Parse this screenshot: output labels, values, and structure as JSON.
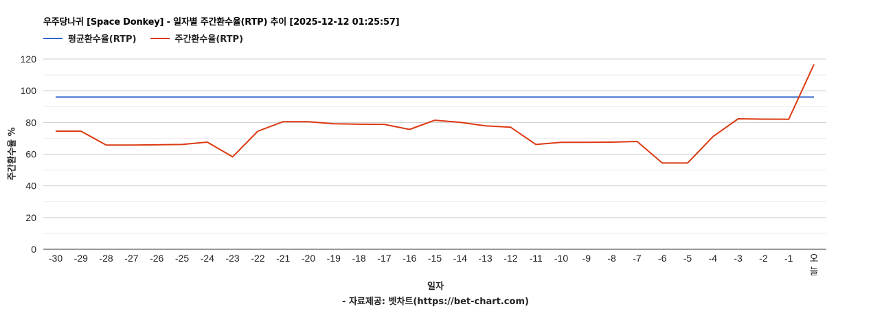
{
  "title": "우주당나귀 [Space Donkey] - 일자별 주간환수율(RTP) 추이 [2025-12-12 01:25:57]",
  "legend": [
    {
      "label": "평균환수율(RTP)",
      "color": "#3366cc"
    },
    {
      "label": "주간환수율(RTP)",
      "color": "#dc3912"
    }
  ],
  "yaxis_title": "주간환수율 %",
  "xaxis_title": "일자",
  "credit": "- 자료제공: 벳차트(https://bet-chart.com)",
  "chart_data": {
    "type": "line",
    "title": "우주당나귀 [Space Donkey] - 일자별 주간환수율(RTP) 추이 [2025-12-12 01:25:57]",
    "xlabel": "일자",
    "ylabel": "주간환수율 %",
    "ylim": [
      0,
      120
    ],
    "yticks": [
      0,
      20,
      40,
      60,
      80,
      100,
      120
    ],
    "grid": true,
    "legend_position": "top",
    "categories": [
      "-30",
      "-29",
      "-28",
      "-27",
      "-26",
      "-25",
      "-24",
      "-23",
      "-22",
      "-21",
      "-20",
      "-19",
      "-18",
      "-17",
      "-16",
      "-15",
      "-14",
      "-13",
      "-12",
      "-11",
      "-10",
      "-9",
      "-8",
      "-7",
      "-6",
      "-5",
      "-4",
      "-3",
      "-2",
      "-1",
      "오늘"
    ],
    "series": [
      {
        "name": "평균환수율(RTP)",
        "color": "#3366cc",
        "values": [
          96,
          96,
          96,
          96,
          96,
          96,
          96,
          96,
          96,
          96,
          96,
          96,
          96,
          96,
          96,
          96,
          96,
          96,
          96,
          96,
          96,
          96,
          96,
          96,
          96,
          96,
          96,
          96,
          96,
          96,
          96
        ]
      },
      {
        "name": "주간환수율(RTP)",
        "color": "#dc3912",
        "values": [
          74.5,
          74.5,
          65.7,
          65.7,
          65.9,
          66.1,
          67.6,
          58.3,
          74.5,
          80.5,
          80.5,
          79.2,
          78.9,
          78.8,
          75.6,
          81.4,
          80.1,
          77.9,
          77.0,
          66.1,
          67.5,
          67.5,
          67.6,
          68.0,
          54.4,
          54.4,
          71.0,
          82.3,
          82.1,
          82.0,
          116.6
        ]
      }
    ]
  }
}
